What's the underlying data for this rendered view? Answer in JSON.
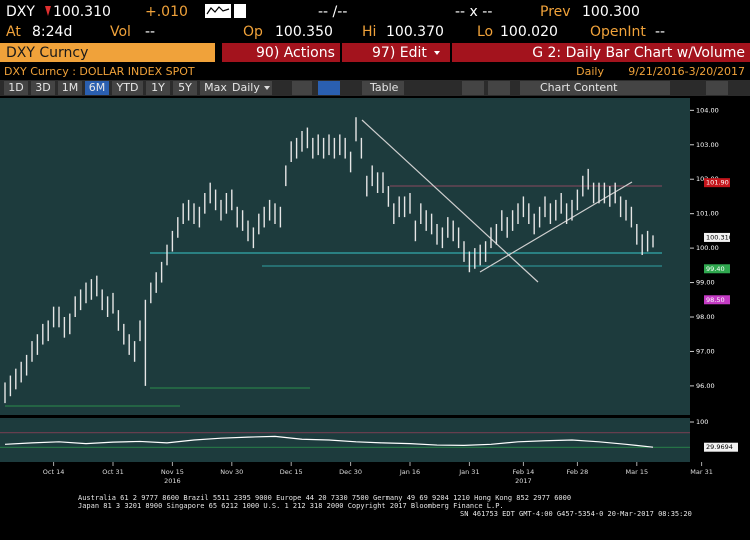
{
  "header": {
    "ticker": "DXY",
    "last": "100.310",
    "change": "+.010",
    "bid_ask": "-- /--",
    "size": "-- x --",
    "prev_label": "Prev",
    "prev": "100.300",
    "at_label": "At",
    "time": "8:24d",
    "vol_label": "Vol",
    "vol": "--",
    "open_label": "Op",
    "open": "100.350",
    "high_label": "Hi",
    "high": "100.370",
    "low_label": "Lo",
    "low": "100.020",
    "oi_label": "OpenInt",
    "oi": "--"
  },
  "menu": {
    "security": "DXY Curncy",
    "actions": "90) Actions",
    "edit": "97) Edit",
    "view": "G 2: Daily Bar Chart w/Volume"
  },
  "subheader": {
    "security_name": "DXY Curncy : DOLLAR INDEX SPOT",
    "period_label": "Daily",
    "date_range": "9/21/2016-3/20/2017"
  },
  "toolbar": {
    "ranges": [
      "1D",
      "3D",
      "1M",
      "6M",
      "YTD",
      "1Y",
      "5Y",
      "Max"
    ],
    "selected": "6M",
    "frequency": "Daily",
    "table": "Table",
    "chart_content": "Chart Content"
  },
  "chart_data": {
    "type": "hilo",
    "color": "#e6e6e6",
    "categories": [
      null,
      null,
      null,
      null,
      null,
      null,
      null,
      null,
      null,
      "Oct 14",
      null,
      null,
      null,
      null,
      null,
      null,
      null,
      null,
      null,
      null,
      "Oct 31",
      null,
      null,
      null,
      null,
      null,
      null,
      null,
      null,
      null,
      null,
      "Nov 15",
      null,
      null,
      null,
      null,
      null,
      null,
      null,
      null,
      null,
      null,
      "Nov 30",
      null,
      null,
      null,
      null,
      null,
      null,
      null,
      null,
      null,
      null,
      "Dec 15",
      null,
      null,
      null,
      null,
      null,
      null,
      null,
      null,
      null,
      null,
      "Dec 30",
      null,
      null,
      null,
      null,
      null,
      null,
      null,
      null,
      null,
      null,
      "Jan 16",
      null,
      null,
      null,
      null,
      null,
      null,
      null,
      null,
      null,
      null,
      "Jan 31",
      null,
      null,
      null,
      null,
      null,
      null,
      null,
      null,
      null,
      "Feb 14",
      null,
      null,
      null,
      null,
      null,
      null,
      null,
      null,
      null,
      "Feb 28",
      null,
      null,
      null,
      null,
      null,
      null,
      null,
      null,
      null,
      null,
      "Mar 15",
      null,
      null,
      null,
      null,
      null,
      null,
      null,
      null,
      null,
      null,
      null,
      "Mar 31"
    ],
    "high": [
      96.1,
      96.3,
      96.5,
      96.7,
      96.9,
      97.3,
      97.5,
      97.8,
      97.9,
      98.3,
      98.3,
      98.0,
      98.1,
      98.6,
      98.8,
      99.0,
      99.1,
      99.2,
      98.8,
      98.6,
      98.7,
      98.2,
      97.8,
      97.5,
      97.3,
      97.9,
      98.5,
      99.0,
      99.3,
      99.6,
      100.1,
      100.5,
      100.9,
      101.3,
      101.4,
      101.3,
      101.2,
      101.6,
      101.9,
      101.7,
      101.4,
      101.6,
      101.7,
      101.2,
      101.1,
      100.8,
      100.6,
      101.0,
      101.2,
      101.4,
      101.3,
      101.2,
      102.4,
      103.1,
      103.2,
      103.4,
      103.5,
      103.2,
      103.3,
      103.2,
      103.3,
      103.2,
      103.3,
      103.2,
      102.8,
      103.8,
      103.2,
      102.1,
      102.4,
      102.2,
      102.2,
      101.8,
      101.3,
      101.5,
      101.5,
      101.6,
      100.8,
      101.3,
      101.1,
      101.0,
      100.7,
      100.6,
      100.9,
      100.8,
      100.6,
      100.2,
      99.9,
      100.0,
      100.1,
      100.2,
      100.6,
      100.7,
      101.1,
      100.9,
      101.1,
      101.3,
      101.5,
      101.3,
      101.0,
      101.2,
      101.5,
      101.3,
      101.4,
      101.6,
      101.3,
      101.4,
      101.7,
      102.1,
      102.3,
      101.9,
      101.9,
      101.9,
      101.8,
      101.9,
      101.5,
      101.4,
      101.2,
      100.7,
      100.4,
      100.5,
      100.37,
      null,
      null,
      null,
      null,
      null,
      null,
      null,
      null,
      null
    ],
    "low": [
      95.5,
      95.7,
      95.9,
      96.1,
      96.3,
      96.7,
      96.9,
      97.2,
      97.3,
      97.7,
      97.7,
      97.4,
      97.5,
      98.0,
      98.2,
      98.4,
      98.5,
      98.6,
      98.2,
      98.0,
      98.1,
      97.6,
      97.2,
      96.9,
      96.7,
      97.3,
      96.0,
      98.4,
      98.7,
      99.0,
      99.5,
      99.9,
      100.3,
      100.7,
      100.8,
      100.7,
      100.6,
      101.0,
      101.3,
      101.1,
      100.8,
      101.0,
      101.1,
      100.6,
      100.5,
      100.2,
      100.0,
      100.4,
      100.6,
      100.8,
      100.7,
      100.6,
      101.8,
      102.5,
      102.6,
      102.8,
      102.9,
      102.6,
      102.7,
      102.6,
      102.7,
      102.6,
      102.7,
      102.6,
      102.2,
      103.1,
      102.6,
      101.5,
      101.8,
      101.6,
      101.6,
      101.2,
      100.7,
      100.9,
      100.9,
      101.0,
      100.2,
      100.7,
      100.5,
      100.4,
      100.1,
      100.0,
      100.3,
      100.2,
      100.0,
      99.6,
      99.3,
      99.4,
      99.5,
      99.6,
      100.0,
      100.1,
      100.5,
      100.3,
      100.5,
      100.7,
      100.9,
      100.7,
      100.4,
      100.6,
      100.9,
      100.7,
      100.8,
      101.0,
      100.7,
      100.8,
      101.1,
      101.5,
      101.7,
      101.3,
      101.3,
      101.3,
      101.2,
      101.3,
      100.9,
      100.8,
      100.6,
      100.1,
      99.8,
      99.9,
      100.02,
      null,
      null,
      null,
      null,
      null,
      null,
      null,
      null,
      null
    ],
    "ylim": [
      95.3,
      104.3
    ],
    "yticks": [
      {
        "value": 96,
        "label": "96.00"
      },
      {
        "value": 97,
        "label": "97.00"
      },
      {
        "value": 98,
        "label": "98.00"
      },
      {
        "value": 99,
        "label": "99.00"
      },
      {
        "value": 100,
        "label": "100.00"
      },
      {
        "value": 101,
        "label": "101.00"
      },
      {
        "value": 102,
        "label": "102.00"
      },
      {
        "value": 103,
        "label": "103.00"
      },
      {
        "value": 104,
        "label": "104.00"
      }
    ],
    "price_labels": [
      {
        "value": 101.9,
        "label": "101.90",
        "color": "#c4161c"
      },
      {
        "value": 100.31,
        "label": "100.310",
        "color": "#f2f2f2"
      },
      {
        "value": 99.4,
        "label": "99.40",
        "color": "#2fa84f"
      },
      {
        "value": 98.5,
        "label": "98.50",
        "color": "#c43bc4"
      }
    ],
    "year_labels": [
      {
        "category": "Nov 15",
        "label": "2016"
      },
      {
        "category": "Feb 14",
        "label": "2017"
      }
    ],
    "oscillator": {
      "values": [
        38,
        42,
        45,
        40,
        44,
        46,
        42,
        50,
        55,
        58,
        60,
        52,
        50,
        45,
        42,
        40,
        36,
        35,
        38,
        45,
        48,
        50,
        45,
        38,
        29.9694
      ],
      "ylim": [
        0,
        100
      ],
      "yticks": [
        100
      ],
      "color": "#ffffff"
    }
  },
  "footer": {
    "lines": [
      "Australia 61 2 9777 8600 Brazil 5511 2395 9000 Europe 44 20 7330 7500 Germany 49 69 9204 1210 Hong Kong 852 2977 6000",
      "Japan 81 3 3201 8900       Singapore 65 6212 1000       U.S. 1 212 318 2000       Copyright 2017 Bloomberg Finance L.P.",
      "SN 461753 EDT  GMT-4:00 G457-5354-0 20-Mar-2017 08:35:20"
    ]
  }
}
